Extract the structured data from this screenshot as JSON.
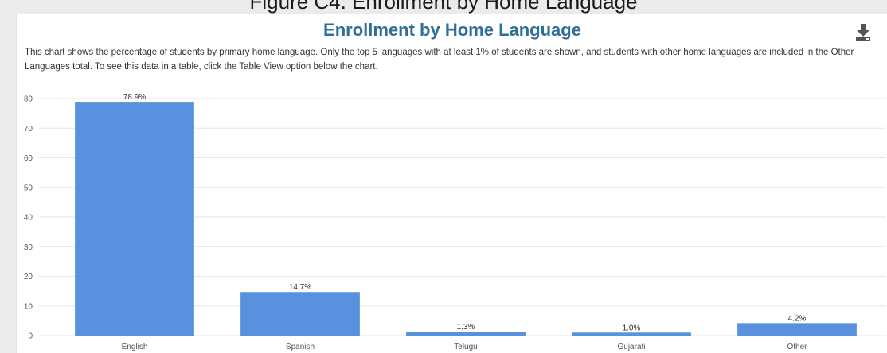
{
  "figure_caption": "Figure C4. Enrollment by Home Language",
  "chart": {
    "description": "This chart shows the percentage of students by primary home language. Only the top 5 languages with at least 1% of students are shown, and students with other home languages are included in the Other Languages total. To see this data in a table, click the Table View option below the chart.",
    "download_icon": "download-icon"
  },
  "colors": {
    "bar": "#5891dd",
    "title": "#2f6e97",
    "grid": "#e6e6e6"
  },
  "chart_data": {
    "type": "bar",
    "title": "Enrollment by Home Language",
    "categories": [
      "English",
      "Spanish",
      "Telugu",
      "Gujarati",
      "Other"
    ],
    "values": [
      78.9,
      14.7,
      1.3,
      1.0,
      4.2
    ],
    "value_labels": [
      "78.9%",
      "14.7%",
      "1.3%",
      "1.0%",
      "4.2%"
    ],
    "yticks": [
      0,
      10,
      20,
      30,
      40,
      50,
      60,
      70,
      80
    ],
    "ylim": [
      0,
      80
    ],
    "xlabel": "",
    "ylabel": "",
    "grid": true,
    "legend": "none"
  }
}
